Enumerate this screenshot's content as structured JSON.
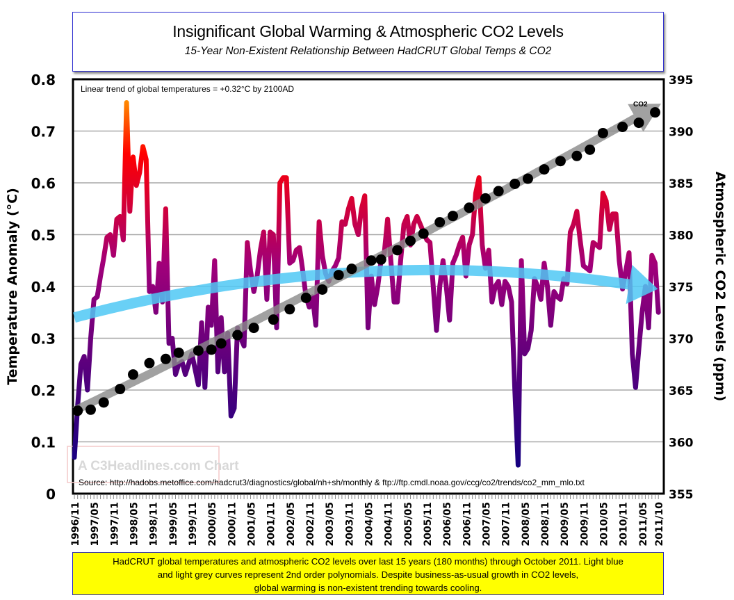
{
  "header": {
    "title": "Insignificant Global Warming & Atmospheric CO2 Levels",
    "subtitle": "15-Year Non-Existent Relationship Between HadCRUT Global Temps & CO2"
  },
  "caption": {
    "lines": [
      "HadCRUT global temperatures and atmospheric CO2 levels over last 15 years (180 months) through October 2011. Light blue",
      "and  light grey curves represent 2nd order polynomials. Despite business-as-usual growth in CO2 levels,",
      "global warming is non-existent trending towards cooling."
    ]
  },
  "colors": {
    "temp_low": "#100080",
    "temp_mid": "#a0007a",
    "temp_high": "#ff0000",
    "temp_peak": "#ff8c00",
    "temp_trend": "#4fc8f5",
    "co2_trend": "#8a8a8a",
    "co2_points": "#000000",
    "caption_bg": "#ffff00",
    "frame_border": "#2b2bd0"
  },
  "chart_data": {
    "type": "line",
    "title": "Insignificant Global Warming & Atmospheric CO2 Levels",
    "subtitle": "15-Year Non-Existent Relationship Between HadCRUT Global Temps & CO2",
    "ylabel": "Temperature Anomaly (°C)",
    "y2label": "Atmospheric CO2 Levels (ppm)",
    "ylim": [
      0,
      0.8
    ],
    "y2lim": [
      355,
      395
    ],
    "yticks": [
      "0",
      "0.1",
      "0.2",
      "0.3",
      "0.4",
      "0.5",
      "0.6",
      "0.7",
      "0.8"
    ],
    "y2ticks": [
      "355",
      "360",
      "365",
      "370",
      "375",
      "380",
      "385",
      "390",
      "395"
    ],
    "xticks": [
      "1996/11",
      "1997/05",
      "1997/11",
      "1998/05",
      "1998/11",
      "1999/05",
      "1999/11",
      "2000/05",
      "2000/11",
      "2001/05",
      "2001/11",
      "2002/05",
      "2002/11",
      "2003/05",
      "2003/11",
      "2004/05",
      "2004/11",
      "2005/05",
      "2005/11",
      "2006/05",
      "2006/11",
      "2007/05",
      "2007/11",
      "2008/05",
      "2008/11",
      "2009/05",
      "2009/11",
      "2010/05",
      "2010/11",
      "2011/05",
      "2011/10"
    ],
    "grid": true,
    "annotation": "Linear trend of global temperatures = +0.32°C by 2100AD",
    "source": "Source: http://hadobs.metoffice.com/hadcrut3/diagnostics/global/nh+sh/monthly  &  ftp://ftp.cmdl.noaa.gov/ccg/co2/trends/co2_mm_mlo.txt",
    "watermark": "A C3Headlines.com Chart",
    "series": [
      {
        "axis": "left",
        "start": "1996/11",
        "frequency": "monthly",
        "values": [
          0.07,
          0.17,
          0.25,
          0.265,
          0.2,
          0.3,
          0.375,
          0.38,
          0.42,
          0.455,
          0.495,
          0.5,
          0.46,
          0.53,
          0.535,
          0.49,
          0.755,
          0.545,
          0.65,
          0.595,
          0.62,
          0.67,
          0.645,
          0.39,
          0.4,
          0.35,
          0.445,
          0.37,
          0.55,
          0.29,
          0.3,
          0.23,
          0.25,
          0.255,
          0.23,
          0.25,
          0.27,
          0.24,
          0.21,
          0.33,
          0.205,
          0.36,
          0.325,
          0.45,
          0.235,
          0.34,
          0.235,
          0.31,
          0.15,
          0.165,
          0.32,
          0.3,
          0.285,
          0.485,
          0.43,
          0.39,
          0.42,
          0.47,
          0.505,
          0.375,
          0.505,
          0.5,
          0.32,
          0.6,
          0.61,
          0.61,
          0.445,
          0.45,
          0.47,
          0.475,
          0.43,
          0.38,
          0.36,
          0.38,
          0.325,
          0.525,
          0.46,
          0.425,
          0.41,
          0.43,
          0.44,
          0.455,
          0.525,
          0.52,
          0.55,
          0.57,
          0.52,
          0.5,
          0.55,
          0.575,
          0.32,
          0.42,
          0.365,
          0.4,
          0.45,
          0.465,
          0.53,
          0.45,
          0.37,
          0.37,
          0.45,
          0.52,
          0.535,
          0.48,
          0.52,
          0.535,
          0.52,
          0.505,
          0.49,
          0.485,
          0.4,
          0.315,
          0.4,
          0.45,
          0.4,
          0.335,
          0.445,
          0.46,
          0.48,
          0.495,
          0.42,
          0.48,
          0.5,
          0.58,
          0.61,
          0.48,
          0.435,
          0.47,
          0.37,
          0.4,
          0.41,
          0.365,
          0.41,
          0.4,
          0.37,
          0.2,
          0.055,
          0.45,
          0.27,
          0.28,
          0.315,
          0.415,
          0.4,
          0.375,
          0.445,
          0.4,
          0.325,
          0.39,
          0.38,
          0.375,
          0.415,
          0.405,
          0.505,
          0.52,
          0.545,
          0.49,
          0.44,
          0.435,
          0.43,
          0.485,
          0.48,
          0.475,
          0.58,
          0.565,
          0.51,
          0.54,
          0.54,
          0.45,
          0.395,
          0.43,
          0.465,
          0.27,
          0.205,
          0.28,
          0.35,
          0.4,
          0.32,
          0.46,
          0.445,
          0.35
        ]
      },
      {
        "name": "CO2",
        "axis": "right",
        "points": [
          {
            "date": "1996/12",
            "value": 363.0
          },
          {
            "date": "1997/04",
            "value": 363.1
          },
          {
            "date": "1997/08",
            "value": 363.8
          },
          {
            "date": "1998/01",
            "value": 365.1
          },
          {
            "date": "1998/05",
            "value": 366.5
          },
          {
            "date": "1998/10",
            "value": 367.6
          },
          {
            "date": "1999/03",
            "value": 368.0
          },
          {
            "date": "1999/07",
            "value": 368.6
          },
          {
            "date": "2000/01",
            "value": 368.8
          },
          {
            "date": "2000/05",
            "value": 368.9
          },
          {
            "date": "2000/08",
            "value": 369.5
          },
          {
            "date": "2001/01",
            "value": 370.3
          },
          {
            "date": "2001/06",
            "value": 371.0
          },
          {
            "date": "2001/12",
            "value": 371.8
          },
          {
            "date": "2002/05",
            "value": 372.8
          },
          {
            "date": "2002/10",
            "value": 373.9
          },
          {
            "date": "2003/03",
            "value": 374.7
          },
          {
            "date": "2003/08",
            "value": 376.1
          },
          {
            "date": "2003/12",
            "value": 376.7
          },
          {
            "date": "2004/06",
            "value": 377.5
          },
          {
            "date": "2004/09",
            "value": 377.6
          },
          {
            "date": "2005/02",
            "value": 378.5
          },
          {
            "date": "2005/06",
            "value": 379.4
          },
          {
            "date": "2005/10",
            "value": 380.1
          },
          {
            "date": "2006/03",
            "value": 381.2
          },
          {
            "date": "2006/07",
            "value": 381.8
          },
          {
            "date": "2006/12",
            "value": 382.6
          },
          {
            "date": "2007/05",
            "value": 383.5
          },
          {
            "date": "2007/09",
            "value": 384.2
          },
          {
            "date": "2008/02",
            "value": 384.9
          },
          {
            "date": "2008/06",
            "value": 385.4
          },
          {
            "date": "2008/11",
            "value": 386.3
          },
          {
            "date": "2009/04",
            "value": 387.1
          },
          {
            "date": "2009/09",
            "value": 387.6
          },
          {
            "date": "2010/01",
            "value": 388.2
          },
          {
            "date": "2010/05",
            "value": 389.8
          },
          {
            "date": "2010/11",
            "value": 390.4
          },
          {
            "date": "2011/04",
            "value": 390.8
          },
          {
            "date": "2011/09",
            "value": 391.8
          }
        ]
      }
    ],
    "trends": [
      {
        "type": "polynomial-2nd-order",
        "axis": "left",
        "color": "#4fc8f5",
        "points": [
          {
            "date": "1996/11",
            "value": 0.34
          },
          {
            "date": "2004/10",
            "value": 0.43
          },
          {
            "date": "2011/10",
            "value": 0.395
          }
        ]
      },
      {
        "type": "polynomial-2nd-order",
        "axis": "right",
        "color": "#8a8a8a",
        "points": [
          {
            "date": "1996/11",
            "value": 363.0
          },
          {
            "date": "2004/05",
            "value": 377.3
          },
          {
            "date": "2011/10",
            "value": 392.5
          }
        ]
      }
    ]
  }
}
